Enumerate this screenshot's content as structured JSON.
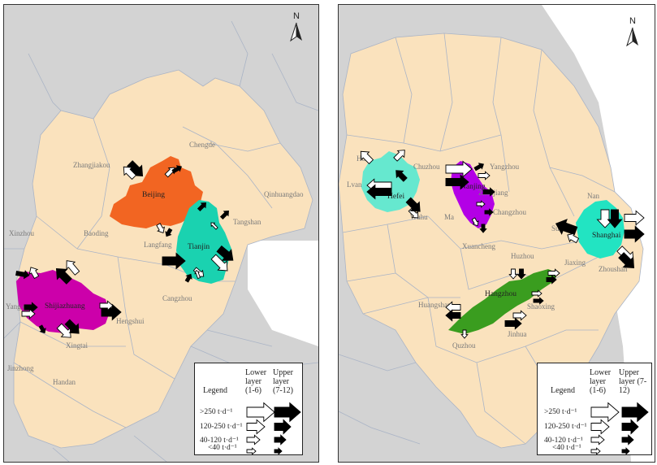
{
  "colors": {
    "region_fill": "#fae2bd",
    "outside_fill": "#d3d3d3",
    "sea_fill": "#ffffff",
    "boundary": "#aab4c6",
    "beijing": "#f26522",
    "tianjin": "#1ad2b0",
    "shijiazhuang": "#cc00aa",
    "hefei": "#66e8cf",
    "nanjing": "#b300e6",
    "hangzhou": "#3a9d1f",
    "shanghai": "#22e4c2",
    "arrow_lower": "#ffffff",
    "arrow_upper": "#000000"
  },
  "left_map": {
    "north_label": "N",
    "cities": {
      "beijing": "Beijing",
      "tianjin": "Tianjin",
      "shijiazhuang": "Shijiazhuang"
    },
    "labels": {
      "zhangjiakou": "Zhangjiakou",
      "chengde": "Chengde",
      "qinhuangdao": "Qinhuangdao",
      "tangshan": "Tangshan",
      "langfang": "Langfang",
      "baoding": "Baoding",
      "xinzhou": "Xinzhou",
      "yangquan": "Yang\nquan",
      "cangzhou": "Cangzhou",
      "hengshui": "Hengshui",
      "xingtai": "Xingtai",
      "jinzhong": "Jinzhong",
      "handan": "Handan"
    },
    "legend": {
      "title": "Legend",
      "lower_header": "Lower layer (1-6)",
      "upper_header": "Upper layer (7-12)",
      "rows": [
        ">250 t·d⁻¹",
        "120-250 t·d⁻¹",
        "40-120 t·d⁻¹",
        "<40 t·d⁻¹"
      ]
    }
  },
  "right_map": {
    "north_label": "N",
    "cities": {
      "hefei": "Hefei",
      "nanjing": "Nanjing",
      "hangzhou": "Hangzhou",
      "shanghai": "Shanghai"
    },
    "labels": {
      "huainan": "Hu",
      "chuzhou": "Chuzhou",
      "yangzhou": "Yangzhou",
      "lvan": "Lvan",
      "zhenjiang": "Zhenjiang",
      "wuhu": "Wuhu",
      "maanshan": "Ma",
      "changzhou": "Changzhou",
      "xuancheng": "Xuancheng",
      "nantong": "Nan",
      "suzhou": "Suzho",
      "jiaxing": "Jiaxing",
      "zhoushan": "Zhoushan",
      "huzhou": "Huzhou",
      "huangshan": "Huangshan",
      "shaoxing": "Shaoxing",
      "jinhua": "Jinhua",
      "quzhou": "Quzhou"
    },
    "legend": {
      "title": "Legend",
      "lower_header": "Lower layer (1-6)",
      "upper_header": "Upper layer (7-12)",
      "rows": [
        ">250 t·d⁻¹",
        "120-250 t·d⁻¹",
        "40-120 t·d⁻¹",
        "<40 t·d⁻¹"
      ]
    }
  }
}
